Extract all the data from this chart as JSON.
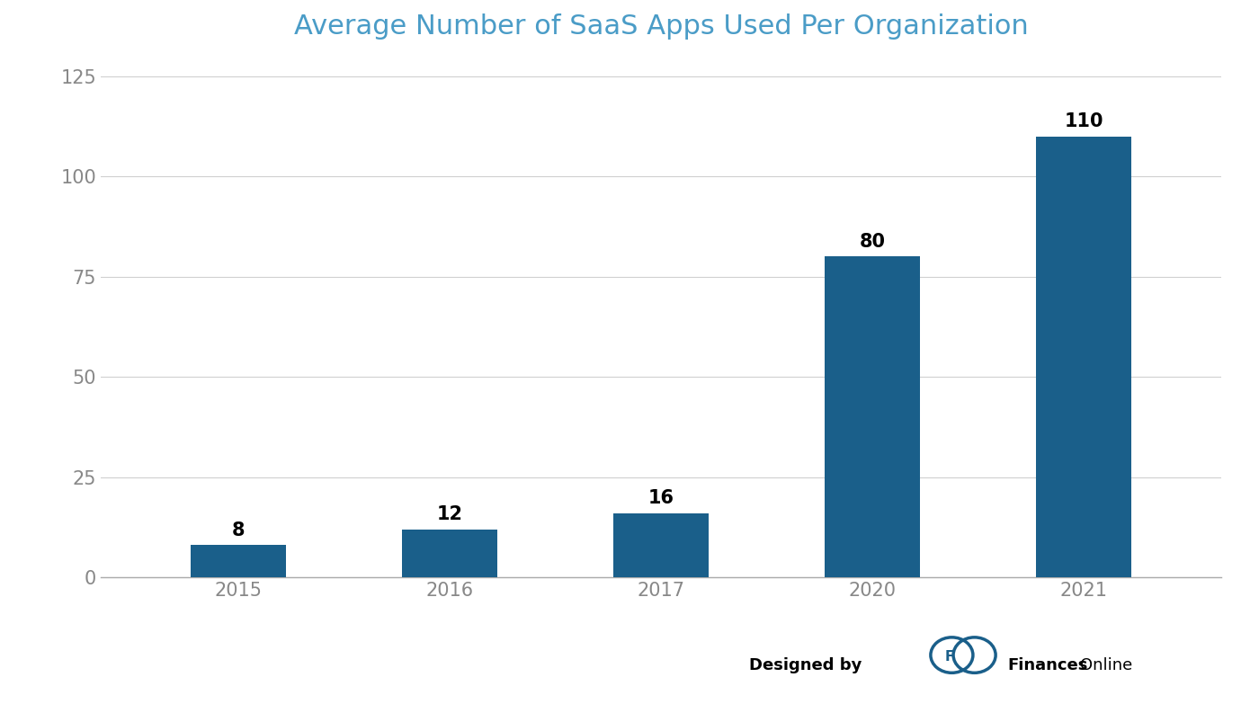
{
  "title": "Average Number of SaaS Apps Used Per Organization",
  "categories": [
    "2015",
    "2016",
    "2017",
    "2020",
    "2021"
  ],
  "values": [
    8,
    12,
    16,
    80,
    110
  ],
  "bar_color": "#1a5f8a",
  "background_color": "#ffffff",
  "ylim": [
    0,
    130
  ],
  "yticks": [
    0,
    25,
    50,
    75,
    100,
    125
  ],
  "title_color": "#4a9cc7",
  "title_fontsize": 22,
  "tick_fontsize": 15,
  "annotation_fontsize": 15,
  "grid_color": "#d0d0d0",
  "axis_color": "#aaaaaa"
}
